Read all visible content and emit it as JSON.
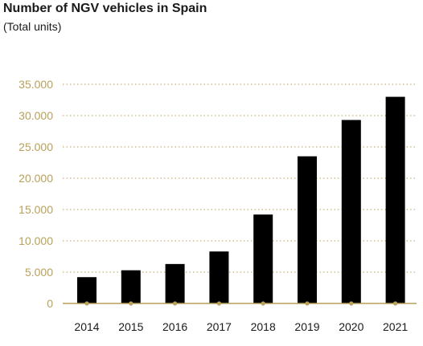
{
  "colors": {
    "bar": "#000000",
    "accent": "#b8a15a",
    "grid": "#b8a15a",
    "text": "#1a1a1a"
  },
  "chart_data": {
    "type": "bar",
    "title": "Number of NGV vehicles in Spain",
    "subtitle": "(Total units)",
    "xlabel": "",
    "ylabel": "",
    "categories": [
      "2014",
      "2015",
      "2016",
      "2017",
      "2018",
      "2019",
      "2020",
      "2021"
    ],
    "values": [
      4200,
      5300,
      6300,
      8300,
      14200,
      23500,
      29300,
      33000
    ],
    "ylim": [
      0,
      35000
    ],
    "yticks": [
      0,
      5000,
      10000,
      15000,
      20000,
      25000,
      30000,
      35000
    ],
    "ytick_labels": [
      "0",
      "5.000",
      "10.000",
      "15.000",
      "20.000",
      "25.000",
      "30.000",
      "35.000"
    ],
    "grid": true,
    "grid_style": "dotted",
    "legend": "none"
  }
}
